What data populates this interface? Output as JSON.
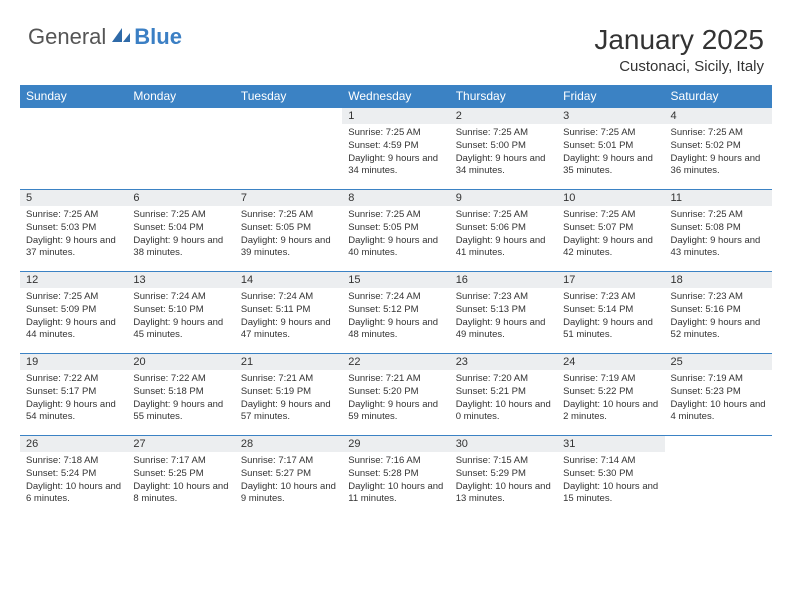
{
  "logo": {
    "part1": "General",
    "part2": "Blue"
  },
  "title": "January 2025",
  "location": "Custonaci, Sicily, Italy",
  "colors": {
    "header_bg": "#3b82c4",
    "header_text": "#ffffff",
    "daynum_bg": "#eceef0",
    "border": "#3b82c4",
    "logo_gray": "#555555",
    "logo_blue": "#3b7fc4"
  },
  "weekdays": [
    "Sunday",
    "Monday",
    "Tuesday",
    "Wednesday",
    "Thursday",
    "Friday",
    "Saturday"
  ],
  "weeks": [
    [
      {
        "day": "",
        "text": ""
      },
      {
        "day": "",
        "text": ""
      },
      {
        "day": "",
        "text": ""
      },
      {
        "day": "1",
        "text": "Sunrise: 7:25 AM\nSunset: 4:59 PM\nDaylight: 9 hours and 34 minutes."
      },
      {
        "day": "2",
        "text": "Sunrise: 7:25 AM\nSunset: 5:00 PM\nDaylight: 9 hours and 34 minutes."
      },
      {
        "day": "3",
        "text": "Sunrise: 7:25 AM\nSunset: 5:01 PM\nDaylight: 9 hours and 35 minutes."
      },
      {
        "day": "4",
        "text": "Sunrise: 7:25 AM\nSunset: 5:02 PM\nDaylight: 9 hours and 36 minutes."
      }
    ],
    [
      {
        "day": "5",
        "text": "Sunrise: 7:25 AM\nSunset: 5:03 PM\nDaylight: 9 hours and 37 minutes."
      },
      {
        "day": "6",
        "text": "Sunrise: 7:25 AM\nSunset: 5:04 PM\nDaylight: 9 hours and 38 minutes."
      },
      {
        "day": "7",
        "text": "Sunrise: 7:25 AM\nSunset: 5:05 PM\nDaylight: 9 hours and 39 minutes."
      },
      {
        "day": "8",
        "text": "Sunrise: 7:25 AM\nSunset: 5:05 PM\nDaylight: 9 hours and 40 minutes."
      },
      {
        "day": "9",
        "text": "Sunrise: 7:25 AM\nSunset: 5:06 PM\nDaylight: 9 hours and 41 minutes."
      },
      {
        "day": "10",
        "text": "Sunrise: 7:25 AM\nSunset: 5:07 PM\nDaylight: 9 hours and 42 minutes."
      },
      {
        "day": "11",
        "text": "Sunrise: 7:25 AM\nSunset: 5:08 PM\nDaylight: 9 hours and 43 minutes."
      }
    ],
    [
      {
        "day": "12",
        "text": "Sunrise: 7:25 AM\nSunset: 5:09 PM\nDaylight: 9 hours and 44 minutes."
      },
      {
        "day": "13",
        "text": "Sunrise: 7:24 AM\nSunset: 5:10 PM\nDaylight: 9 hours and 45 minutes."
      },
      {
        "day": "14",
        "text": "Sunrise: 7:24 AM\nSunset: 5:11 PM\nDaylight: 9 hours and 47 minutes."
      },
      {
        "day": "15",
        "text": "Sunrise: 7:24 AM\nSunset: 5:12 PM\nDaylight: 9 hours and 48 minutes."
      },
      {
        "day": "16",
        "text": "Sunrise: 7:23 AM\nSunset: 5:13 PM\nDaylight: 9 hours and 49 minutes."
      },
      {
        "day": "17",
        "text": "Sunrise: 7:23 AM\nSunset: 5:14 PM\nDaylight: 9 hours and 51 minutes."
      },
      {
        "day": "18",
        "text": "Sunrise: 7:23 AM\nSunset: 5:16 PM\nDaylight: 9 hours and 52 minutes."
      }
    ],
    [
      {
        "day": "19",
        "text": "Sunrise: 7:22 AM\nSunset: 5:17 PM\nDaylight: 9 hours and 54 minutes."
      },
      {
        "day": "20",
        "text": "Sunrise: 7:22 AM\nSunset: 5:18 PM\nDaylight: 9 hours and 55 minutes."
      },
      {
        "day": "21",
        "text": "Sunrise: 7:21 AM\nSunset: 5:19 PM\nDaylight: 9 hours and 57 minutes."
      },
      {
        "day": "22",
        "text": "Sunrise: 7:21 AM\nSunset: 5:20 PM\nDaylight: 9 hours and 59 minutes."
      },
      {
        "day": "23",
        "text": "Sunrise: 7:20 AM\nSunset: 5:21 PM\nDaylight: 10 hours and 0 minutes."
      },
      {
        "day": "24",
        "text": "Sunrise: 7:19 AM\nSunset: 5:22 PM\nDaylight: 10 hours and 2 minutes."
      },
      {
        "day": "25",
        "text": "Sunrise: 7:19 AM\nSunset: 5:23 PM\nDaylight: 10 hours and 4 minutes."
      }
    ],
    [
      {
        "day": "26",
        "text": "Sunrise: 7:18 AM\nSunset: 5:24 PM\nDaylight: 10 hours and 6 minutes."
      },
      {
        "day": "27",
        "text": "Sunrise: 7:17 AM\nSunset: 5:25 PM\nDaylight: 10 hours and 8 minutes."
      },
      {
        "day": "28",
        "text": "Sunrise: 7:17 AM\nSunset: 5:27 PM\nDaylight: 10 hours and 9 minutes."
      },
      {
        "day": "29",
        "text": "Sunrise: 7:16 AM\nSunset: 5:28 PM\nDaylight: 10 hours and 11 minutes."
      },
      {
        "day": "30",
        "text": "Sunrise: 7:15 AM\nSunset: 5:29 PM\nDaylight: 10 hours and 13 minutes."
      },
      {
        "day": "31",
        "text": "Sunrise: 7:14 AM\nSunset: 5:30 PM\nDaylight: 10 hours and 15 minutes."
      },
      {
        "day": "",
        "text": ""
      }
    ]
  ]
}
